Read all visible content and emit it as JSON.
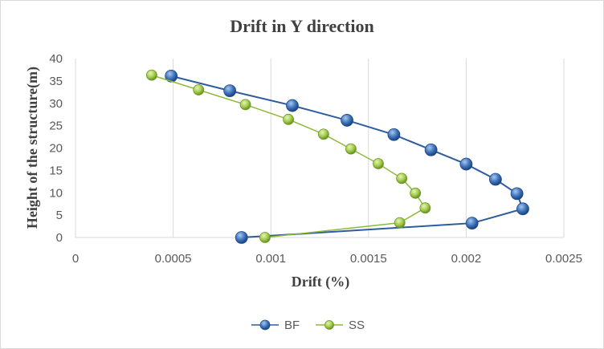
{
  "chart_data": {
    "type": "scatter",
    "title": "Drift in Y direction",
    "xlabel": "Drift (%)",
    "ylabel": "Height of the structure(m)",
    "xlim": [
      0,
      0.0025
    ],
    "ylim": [
      0,
      40
    ],
    "x_ticks": [
      "0",
      "0.0005",
      "0.001",
      "0.0015",
      "0.002",
      "0.0025"
    ],
    "y_ticks": [
      "0",
      "5",
      "10",
      "15",
      "20",
      "25",
      "30",
      "35",
      "40"
    ],
    "grid": "vertical-major",
    "legend_position": "bottom",
    "series": [
      {
        "name": "BF",
        "color": "#2e5d9f",
        "points": [
          [
            0.00085,
            0
          ],
          [
            0.00203,
            3.2
          ],
          [
            0.00229,
            6.4
          ],
          [
            0.00226,
            9.8
          ],
          [
            0.00215,
            13
          ],
          [
            0.002,
            16.4
          ],
          [
            0.00182,
            19.6
          ],
          [
            0.00163,
            23
          ],
          [
            0.00139,
            26.2
          ],
          [
            0.00111,
            29.5
          ],
          [
            0.00079,
            32.8
          ],
          [
            0.00049,
            36.1
          ]
        ]
      },
      {
        "name": "SS",
        "color": "#8fb93a",
        "points": [
          [
            0.00097,
            0
          ],
          [
            0.00166,
            3.3
          ],
          [
            0.00179,
            6.6
          ],
          [
            0.00174,
            9.9
          ],
          [
            0.00167,
            13.2
          ],
          [
            0.00155,
            16.5
          ],
          [
            0.00141,
            19.8
          ],
          [
            0.00127,
            23.1
          ],
          [
            0.00109,
            26.4
          ],
          [
            0.00087,
            29.7
          ],
          [
            0.00063,
            33
          ],
          [
            0.00039,
            36.3
          ]
        ]
      }
    ]
  }
}
